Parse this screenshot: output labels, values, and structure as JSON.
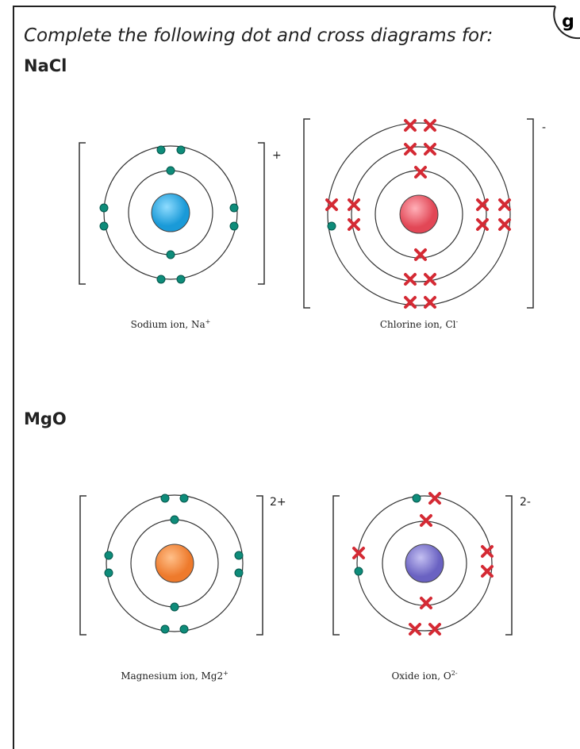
{
  "instruction": "Complete the following dot and cross diagrams for:",
  "corner_label": "g",
  "sections": [
    {
      "heading": "NaCl",
      "ions": [
        {
          "caption": "Sodium ion, Na",
          "caption_sup": "+",
          "charge": "+"
        },
        {
          "caption": "Chlorine ion, Cl",
          "caption_sup": "-",
          "charge": "-"
        }
      ]
    },
    {
      "heading": "MgO",
      "ions": [
        {
          "caption": "Magnesium ion, Mg2",
          "caption_sup": "+",
          "charge": "2+"
        },
        {
          "caption": "Oxide ion, O",
          "caption_sup": "2-",
          "charge": "2-"
        }
      ]
    }
  ]
}
